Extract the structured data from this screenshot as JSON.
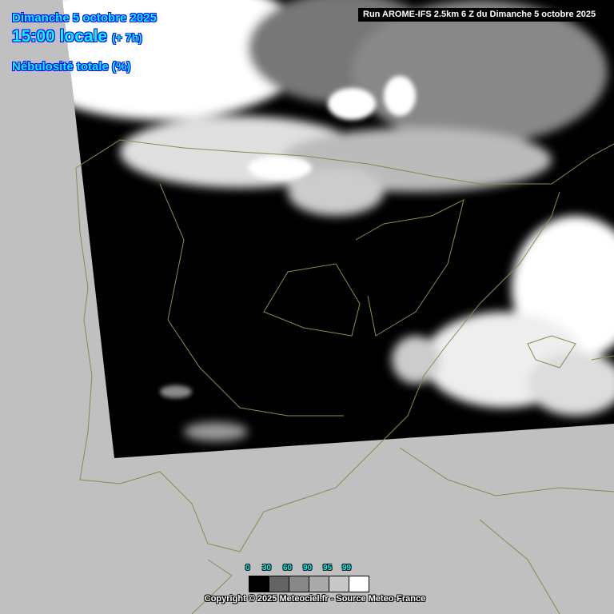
{
  "header": {
    "date": "Dimanche 5 octobre 2025",
    "time": "15:00 locale",
    "lead": "(+ 7h)",
    "parameter": "Nébulosité totale (%)",
    "run": "Run AROME-IFS 2.5km 6 Z du Dimanche 5 octobre 2025"
  },
  "legend": {
    "labels": [
      "0",
      "30",
      "60",
      "90",
      "95",
      "99"
    ],
    "colors": [
      "#000000",
      "#646464",
      "#888888",
      "#aaaaaa",
      "#c8c8c8",
      "#ffffff"
    ]
  },
  "footer": {
    "copyright": "Copyright © 2025 Meteociel.fr - Source Meteo-France"
  },
  "colors": {
    "outside_domain": "#c0c0c0",
    "borders": "#8a8a50",
    "title_text": "#00ffff"
  }
}
